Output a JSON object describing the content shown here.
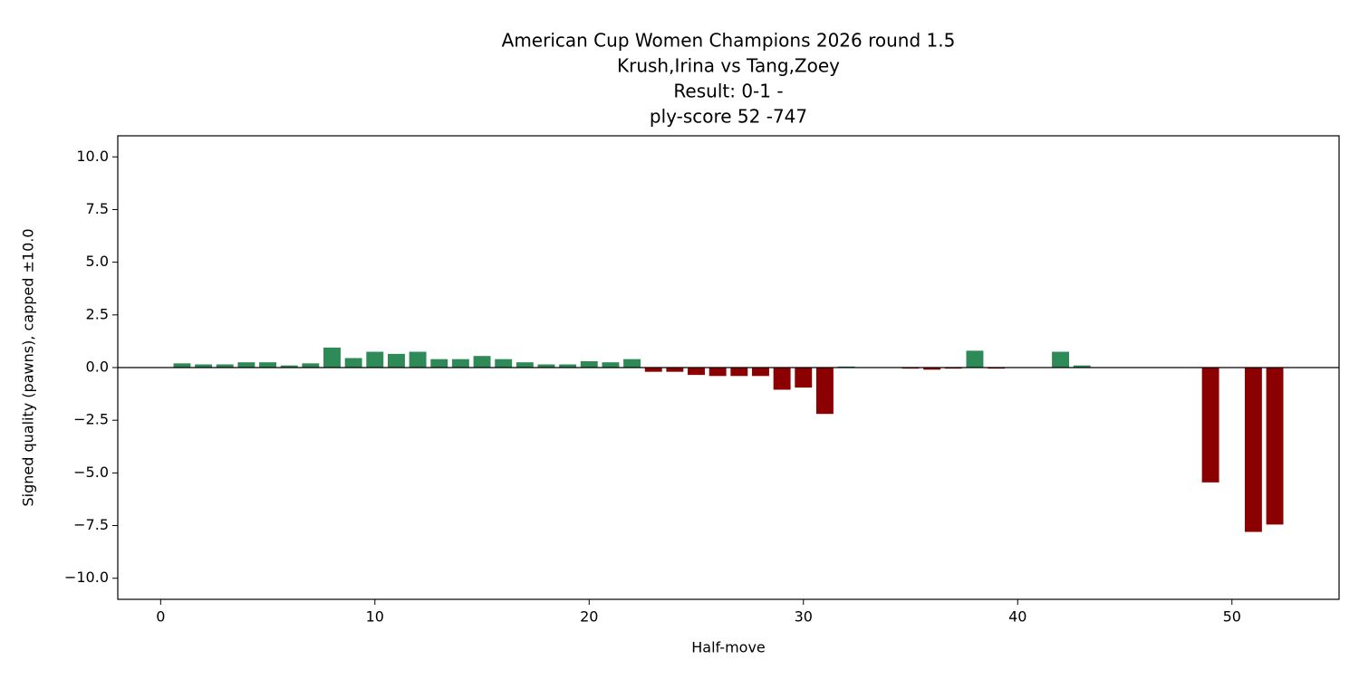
{
  "chart_data": {
    "type": "bar",
    "title": [
      "American Cup Women Champions 2026  round 1.5",
      "Krush,Irina vs Tang,Zoey",
      "Result: 0-1 -",
      "ply-score 52 -747"
    ],
    "xlabel": "Half-move",
    "ylabel": "Signed quality (pawns), capped ±10.0",
    "x": [
      1,
      2,
      3,
      4,
      5,
      6,
      7,
      8,
      9,
      10,
      11,
      12,
      13,
      14,
      15,
      16,
      17,
      18,
      19,
      20,
      21,
      22,
      23,
      24,
      25,
      26,
      27,
      28,
      29,
      30,
      31,
      32,
      33,
      34,
      35,
      36,
      37,
      38,
      39,
      40,
      41,
      42,
      43,
      44,
      45,
      46,
      47,
      48,
      49,
      50,
      51,
      52
    ],
    "values": [
      0.2,
      0.15,
      0.15,
      0.25,
      0.25,
      0.1,
      0.2,
      0.95,
      0.45,
      0.75,
      0.65,
      0.75,
      0.4,
      0.4,
      0.55,
      0.4,
      0.25,
      0.15,
      0.15,
      0.3,
      0.25,
      0.4,
      -0.2,
      -0.2,
      -0.35,
      -0.4,
      -0.4,
      -0.4,
      -1.05,
      -0.95,
      -2.2,
      0.05,
      0,
      0,
      -0.05,
      -0.1,
      -0.05,
      0.8,
      -0.05,
      0,
      0,
      0.75,
      0.1,
      0,
      -0.02,
      0,
      0,
      0,
      -5.45,
      0,
      -7.8,
      -7.45
    ],
    "positive_color": "#2e8b57",
    "negative_color": "#8b0000",
    "bar_width": 0.8,
    "xlim": [
      -2,
      55
    ],
    "ylim": [
      -11,
      11
    ],
    "xticks": [
      0,
      10,
      20,
      30,
      40,
      50
    ],
    "yticks": [
      {
        "value": -10,
        "label": "−10.0"
      },
      {
        "value": -7.5,
        "label": "−7.5"
      },
      {
        "value": -5,
        "label": "−5.0"
      },
      {
        "value": -2.5,
        "label": "−2.5"
      },
      {
        "value": 0,
        "label": "0.0"
      },
      {
        "value": 2.5,
        "label": "2.5"
      },
      {
        "value": 5,
        "label": "5.0"
      },
      {
        "value": 7.5,
        "label": "7.5"
      },
      {
        "value": 10,
        "label": "10.0"
      }
    ],
    "zero_line": true
  }
}
